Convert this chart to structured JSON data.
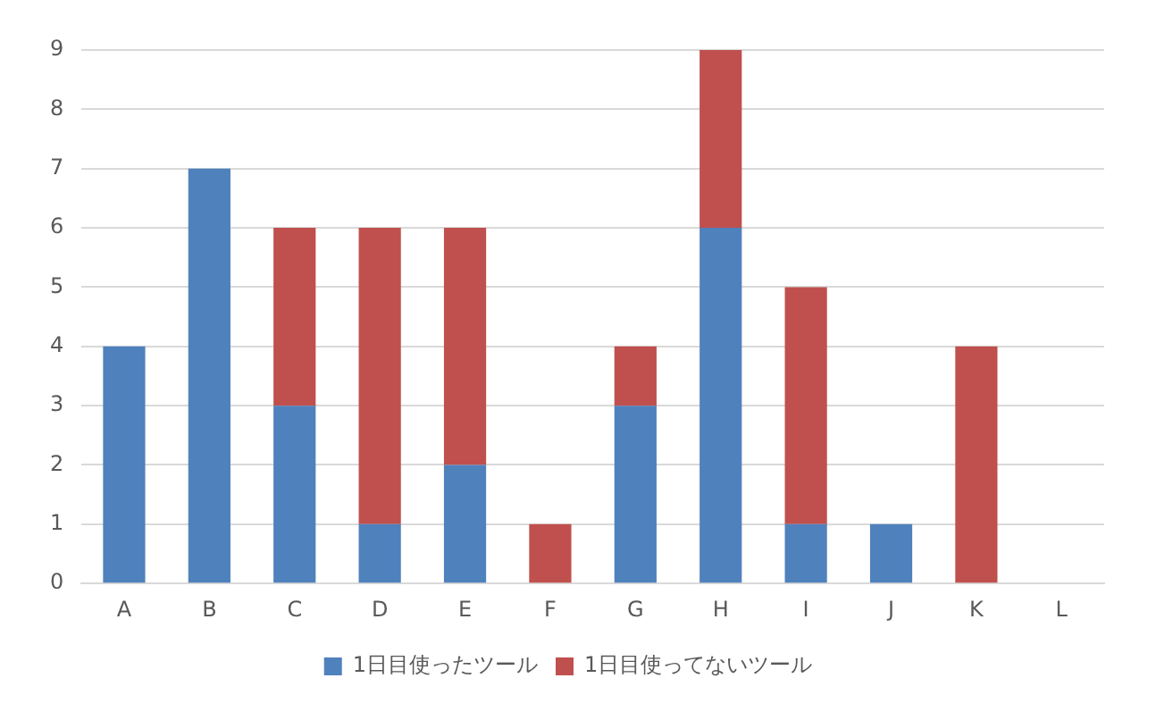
{
  "chart_data": {
    "type": "bar",
    "stacked": true,
    "categories": [
      "A",
      "B",
      "C",
      "D",
      "E",
      "F",
      "G",
      "H",
      "I",
      "J",
      "K",
      "L"
    ],
    "series": [
      {
        "name": "1日目使ったツール",
        "color": "#4f81bd",
        "values": [
          4,
          7,
          3,
          1,
          2,
          0,
          3,
          6,
          1,
          1,
          0,
          0
        ]
      },
      {
        "name": "1日目使ってないツール",
        "color": "#c0504d",
        "values": [
          0,
          0,
          3,
          5,
          4,
          1,
          1,
          3,
          4,
          0,
          4,
          0
        ]
      }
    ],
    "ylim": [
      0,
      9
    ],
    "yticks": [
      0,
      1,
      2,
      3,
      4,
      5,
      6,
      7,
      8,
      9
    ],
    "grid": "y",
    "legend": "bottom"
  }
}
